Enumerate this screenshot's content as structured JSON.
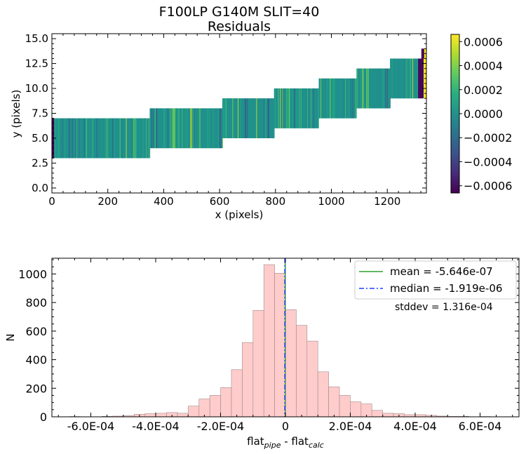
{
  "title": {
    "line1": "F100LP   G140M   SLIT=40",
    "line2": "Residuals"
  },
  "chart_data": [
    {
      "type": "heatmap",
      "xlabel": "x (pixels)",
      "ylabel": "y (pixels)",
      "xlim": [
        0,
        1340
      ],
      "ylim": [
        -0.5,
        15.5
      ],
      "x_ticks": [
        0,
        200,
        400,
        600,
        800,
        1000,
        1200
      ],
      "x_tick_labels": [
        "0",
        "200",
        "400",
        "600",
        "800",
        "1000",
        "1200"
      ],
      "y_ticks": [
        0.0,
        2.5,
        5.0,
        7.5,
        10.0,
        12.5,
        15.0
      ],
      "y_tick_labels": [
        "0.0",
        "2.5",
        "5.0",
        "7.5",
        "10.0",
        "12.5",
        "15.0"
      ],
      "colorbar": {
        "range": [
          -0.00066,
          0.00066
        ],
        "ticks": [
          -0.0006,
          -0.0004,
          -0.0002,
          0.0,
          0.0002,
          0.0004,
          0.0006
        ],
        "tick_labels": [
          "−0.0006",
          "−0.0004",
          "−0.0002",
          "0.0000",
          "0.0002",
          "0.0004",
          "0.0006"
        ],
        "colormap": "viridis"
      },
      "segments": [
        {
          "x0": 0,
          "x1": 350,
          "y0": 3,
          "y1": 7
        },
        {
          "x0": 350,
          "x1": 405,
          "y0": 4,
          "y1": 8
        },
        {
          "x0": 405,
          "x1": 610,
          "y0": 4,
          "y1": 8
        },
        {
          "x0": 610,
          "x1": 650,
          "y0": 5,
          "y1": 9
        },
        {
          "x0": 650,
          "x1": 795,
          "y0": 5,
          "y1": 9
        },
        {
          "x0": 795,
          "x1": 830,
          "y0": 6,
          "y1": 10
        },
        {
          "x0": 830,
          "x1": 955,
          "y0": 6,
          "y1": 10
        },
        {
          "x0": 955,
          "x1": 980,
          "y0": 7,
          "y1": 11
        },
        {
          "x0": 980,
          "x1": 1090,
          "y0": 7,
          "y1": 11
        },
        {
          "x0": 1090,
          "x1": 1110,
          "y0": 8,
          "y1": 12
        },
        {
          "x0": 1110,
          "x1": 1210,
          "y0": 8,
          "y1": 12
        },
        {
          "x0": 1210,
          "x1": 1230,
          "y0": 9,
          "y1": 13
        },
        {
          "x0": 1230,
          "x1": 1310,
          "y0": 9,
          "y1": 13
        }
      ]
    },
    {
      "type": "bar",
      "subtype": "histogram",
      "xlabel": "flat_pipe - flat_calc",
      "xlabel_parts": {
        "base1": "flat",
        "sub1": "pipe",
        "mid": " - flat",
        "sub2": "calc"
      },
      "ylabel": "N",
      "xlim": [
        -0.00072,
        0.00072
      ],
      "ylim": [
        0,
        1110
      ],
      "x_ticks": [
        -0.0006,
        -0.0004,
        -0.0002,
        0.0,
        0.0002,
        0.0004,
        0.0006
      ],
      "x_tick_labels": [
        "-6.0E-04",
        "-4.0E-04",
        "-2.0E-04",
        "0",
        "2.0E-04",
        "4.0E-04",
        "6.0E-04"
      ],
      "y_ticks": [
        0,
        200,
        400,
        600,
        800,
        1000
      ],
      "y_tick_labels": [
        "0",
        "200",
        "400",
        "600",
        "800",
        "1000"
      ],
      "bin_width": 3.33e-05,
      "bins_start": -0.000666,
      "counts": [
        2,
        0,
        1,
        3,
        5,
        8,
        18,
        22,
        25,
        30,
        25,
        75,
        125,
        150,
        205,
        330,
        520,
        745,
        1065,
        1005,
        750,
        640,
        530,
        315,
        210,
        150,
        105,
        90,
        45,
        25,
        22,
        15,
        15,
        10,
        5,
        3,
        3,
        1,
        2,
        1
      ],
      "mean": -5.646e-07,
      "median": -1.919e-06,
      "legend": {
        "mean_label": "mean = -5.646e-07",
        "median_label": "median = -1.919e-06",
        "stddev_label": "stddev = 1.316e-04",
        "placement": "top-right"
      },
      "colors": {
        "bar": "#ffcccc",
        "bar_edge": "#a08888",
        "mean": "#2ca02c",
        "median": "#1f3fff"
      }
    }
  ]
}
